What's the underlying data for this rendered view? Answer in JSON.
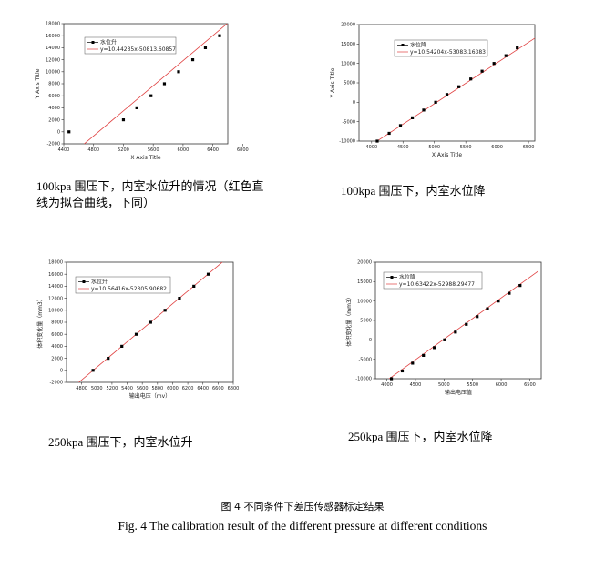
{
  "chart_data": [
    {
      "type": "scatter",
      "title": "",
      "xlabel": "X Axis Title",
      "ylabel": "Y Axis Title",
      "xlim": [
        4400,
        6600
      ],
      "ylim": [
        -2000,
        18000
      ],
      "xticks": [
        "4400",
        "4800",
        "5200",
        "5600",
        "6000",
        "6400",
        "6800"
      ],
      "xtick_values": [
        4400,
        4800,
        5200,
        5600,
        6000,
        6400,
        6800
      ],
      "yticks": [
        "-2000",
        "0",
        "2000",
        "4000",
        "6000",
        "8000",
        "10000",
        "12000",
        "14000",
        "16000",
        "18000"
      ],
      "ytick_values": [
        -2000,
        0,
        2000,
        4000,
        6000,
        8000,
        10000,
        12000,
        14000,
        16000,
        18000
      ],
      "series": [
        {
          "name": "水位升",
          "marker_color": "#000000",
          "x": [
            4470,
            5200,
            5380,
            5570,
            5750,
            5940,
            6130,
            6300,
            6490
          ],
          "y": [
            0,
            2000,
            4000,
            6000,
            8000,
            10000,
            12000,
            14000,
            16000
          ]
        },
        {
          "name": "y=10.44235x-50813.60857",
          "type": "line",
          "line_color": "#e04040",
          "slope": 10.44235,
          "intercept": -50813.60857,
          "x_range": [
            4270,
            6600
          ]
        }
      ],
      "caption": "100kpa 围压下，内室水位升的情况（红色直线为拟合曲线，下同）"
    },
    {
      "type": "scatter",
      "title": "",
      "xlabel": "X Axis Title",
      "ylabel": "Y Axis Title",
      "xlim": [
        3800,
        6600
      ],
      "ylim": [
        -10000,
        20000
      ],
      "xticks": [
        "4000",
        "4500",
        "5000",
        "5500",
        "6000",
        "6500"
      ],
      "xtick_values": [
        4000,
        4500,
        5000,
        5500,
        6000,
        6500
      ],
      "yticks": [
        "-10000",
        "-5000",
        "0",
        "5000",
        "10000",
        "15000",
        "20000"
      ],
      "ytick_values": [
        -10000,
        -5000,
        0,
        5000,
        10000,
        15000,
        20000
      ],
      "series": [
        {
          "name": "水位降",
          "marker_color": "#000000",
          "x": [
            4090,
            4280,
            4460,
            4650,
            4830,
            5020,
            5200,
            5390,
            5580,
            5760,
            5950,
            6140,
            6320
          ],
          "y": [
            -10000,
            -8000,
            -6000,
            -4000,
            -2000,
            0,
            2000,
            4000,
            6000,
            8000,
            10000,
            12000,
            14000
          ]
        },
        {
          "name": "y=10.54204x-53083.16383",
          "type": "line",
          "line_color": "#e04040",
          "slope": 10.54204,
          "intercept": -53083.16383,
          "x_range": [
            3990,
            6600
          ]
        }
      ],
      "caption": "100kpa 围压下，内室水位降"
    },
    {
      "type": "scatter",
      "title": "",
      "xlabel": "输出电压（mv）",
      "ylabel": "体积变化量（mm3）",
      "xlim": [
        4600,
        6800
      ],
      "ylim": [
        -2000,
        18000
      ],
      "xticks": [
        "4800",
        "5000",
        "5200",
        "5400",
        "5600",
        "5800",
        "6000",
        "6200",
        "6400",
        "6600",
        "6800"
      ],
      "xtick_values": [
        4800,
        5000,
        5200,
        5400,
        5600,
        5800,
        6000,
        6200,
        6400,
        6600,
        6800
      ],
      "yticks": [
        "-2000",
        "0",
        "2000",
        "4000",
        "6000",
        "8000",
        "10000",
        "12000",
        "14000",
        "16000",
        "18000"
      ],
      "ytick_values": [
        -2000,
        0,
        2000,
        4000,
        6000,
        8000,
        10000,
        12000,
        14000,
        16000,
        18000
      ],
      "series": [
        {
          "name": "水位升",
          "marker_color": "#000000",
          "x": [
            4950,
            5150,
            5330,
            5520,
            5710,
            5900,
            6090,
            6280,
            6470
          ],
          "y": [
            0,
            2000,
            4000,
            6000,
            8000,
            10000,
            12000,
            14000,
            16000
          ]
        },
        {
          "name": "y=10.56416x-52305.90682",
          "type": "line",
          "line_color": "#e04040",
          "slope": 10.56416,
          "intercept": -52305.90682,
          "x_range": [
            4760,
            6700
          ]
        }
      ],
      "caption": "250kpa 围压下，内室水位升"
    },
    {
      "type": "scatter",
      "title": "",
      "xlabel": "输出电压值",
      "ylabel": "体积变化量（mm3）",
      "xlim": [
        3800,
        6700
      ],
      "ylim": [
        -10000,
        20000
      ],
      "xticks": [
        "4000",
        "4500",
        "5000",
        "5500",
        "6000",
        "6500"
      ],
      "xtick_values": [
        4000,
        4500,
        5000,
        5500,
        6000,
        6500
      ],
      "yticks": [
        "-10000",
        "-5000",
        "0",
        "5000",
        "10000",
        "15000",
        "20000"
      ],
      "ytick_values": [
        -10000,
        -5000,
        0,
        5000,
        10000,
        15000,
        20000
      ],
      "series": [
        {
          "name": "水位降",
          "marker_color": "#000000",
          "x": [
            4080,
            4270,
            4450,
            4640,
            4830,
            5010,
            5200,
            5390,
            5580,
            5760,
            5950,
            6140,
            6330
          ],
          "y": [
            -10000,
            -8000,
            -6000,
            -4000,
            -2000,
            0,
            2000,
            4000,
            6000,
            8000,
            10000,
            12000,
            14000
          ]
        },
        {
          "name": "y=10.63422x-52988.29477",
          "type": "line",
          "line_color": "#e04040",
          "slope": 10.63422,
          "intercept": -52988.29477,
          "x_range": [
            3980,
            6650
          ]
        }
      ],
      "caption": "250kpa 围压下，内室水位降"
    }
  ],
  "figure": {
    "caption_cn": "图 4  不同条件下差压传感器标定结果",
    "caption_en": "Fig. 4 The calibration result of the different pressure at different conditions"
  }
}
